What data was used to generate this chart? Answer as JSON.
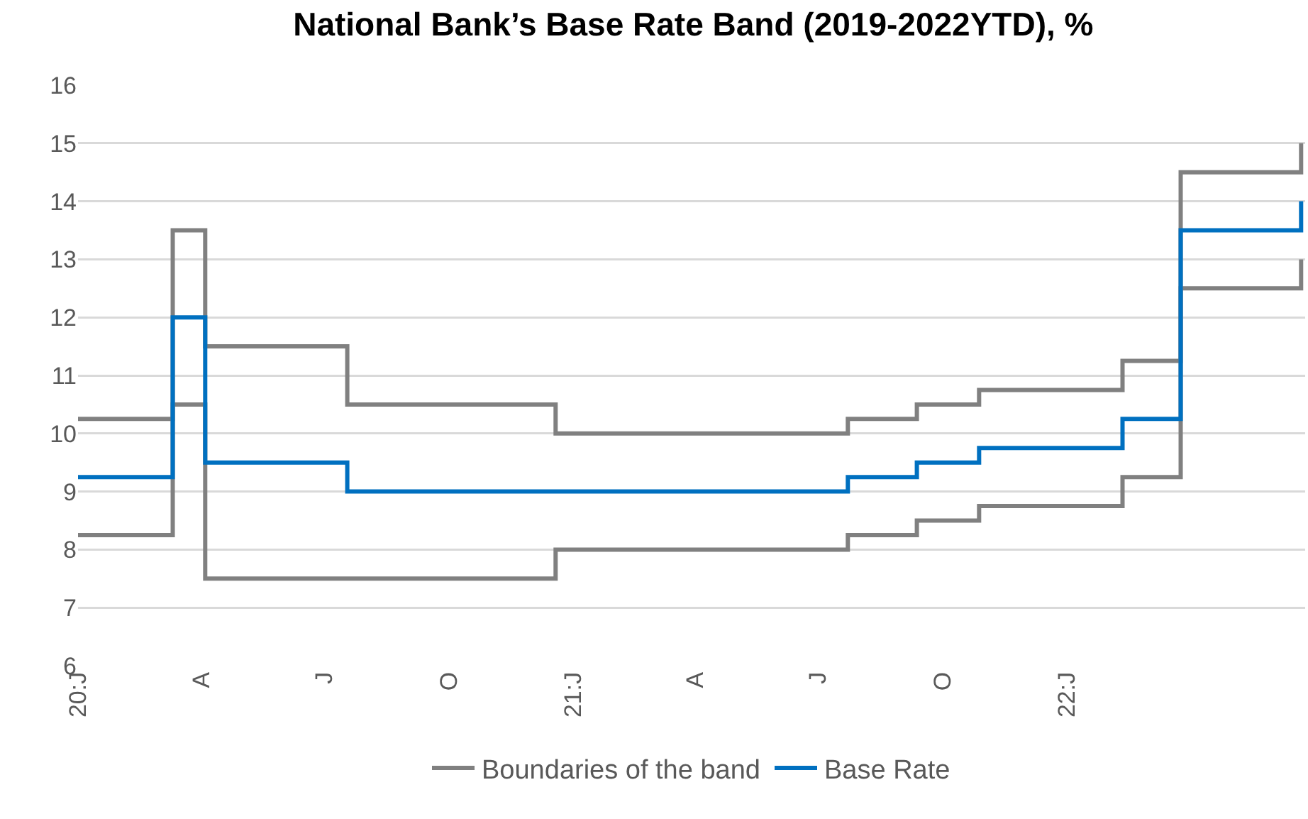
{
  "chart_data": {
    "type": "step",
    "title": "National Bank’s Base Rate Band (2019-2022YTD), %",
    "x": [
      "2020-01-01",
      "2020-03-11",
      "2020-04-04",
      "2020-07-18",
      "2020-12-19",
      "2021-07-23",
      "2021-09-12",
      "2021-10-28",
      "2022-02-11",
      "2022-03-26",
      "2022-06-23"
    ],
    "series": [
      {
        "name": "Boundaries of the band",
        "color": "#808080",
        "values": [
          10.25,
          13.5,
          11.5,
          10.5,
          10,
          10.25,
          10.5,
          10.75,
          11.25,
          14.5,
          15
        ]
      },
      {
        "color": "#808080",
        "values": [
          8.25,
          10.5,
          7.5,
          7.5,
          8,
          8.25,
          8.5,
          8.75,
          9.25,
          12.5,
          13
        ]
      },
      {
        "name": "Base Rate",
        "color": "#0070c0",
        "values": [
          9.25,
          12,
          9.5,
          9,
          9,
          9.25,
          9.5,
          9.75,
          10.25,
          13.5,
          14
        ]
      }
    ],
    "xlim": [
      "2020-01-01",
      "2022-06-26"
    ],
    "xticks": [
      {
        "value": "2020-01-01",
        "label": "20:J"
      },
      {
        "value": "2020-04-01",
        "label": "A"
      },
      {
        "value": "2020-07-01",
        "label": "J"
      },
      {
        "value": "2020-10-01",
        "label": "O"
      },
      {
        "value": "2021-01-01",
        "label": "21:J"
      },
      {
        "value": "2021-04-01",
        "label": "A"
      },
      {
        "value": "2021-07-01",
        "label": "J"
      },
      {
        "value": "2021-10-01",
        "label": "O"
      },
      {
        "value": "2022-01-01",
        "label": "22:J"
      }
    ],
    "ylim": [
      6,
      16
    ],
    "yticks": [
      6,
      7,
      8,
      9,
      10,
      11,
      12,
      13,
      14,
      15,
      16
    ],
    "grid": "y",
    "legend": "bottom"
  }
}
